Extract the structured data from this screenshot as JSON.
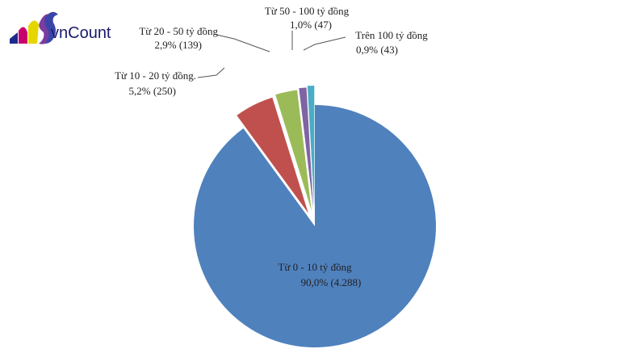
{
  "logo": {
    "text": "vnCount",
    "colors": [
      "#1b2a8a",
      "#c8006e",
      "#e5d600",
      "#7a3ca0"
    ]
  },
  "chart_data": {
    "type": "pie",
    "exploded": true,
    "legend": "none",
    "slices": [
      {
        "name": "Từ 0 - 10 tỷ đồng",
        "percent_label": "90,0%",
        "count_label": "(4.288)",
        "value": 4288,
        "color": "#4f81bd"
      },
      {
        "name": "Từ 10 - 20 tỷ đồng.",
        "percent_label": "5,2%",
        "count_label": "(250)",
        "value": 250,
        "color": "#c0504d"
      },
      {
        "name": "Từ 20 - 50 tỷ đồng",
        "percent_label": "2,9%",
        "count_label": "(139)",
        "value": 139,
        "color": "#9bbb59"
      },
      {
        "name": "Từ 50 - 100 tỷ đồng",
        "percent_label": "1,0%",
        "count_label": "(47)",
        "value": 47,
        "color": "#8064a2"
      },
      {
        "name": "Trên 100 tỷ đồng",
        "percent_label": "0,9%",
        "count_label": "(43)",
        "value": 43,
        "color": "#4bacc6"
      }
    ]
  }
}
